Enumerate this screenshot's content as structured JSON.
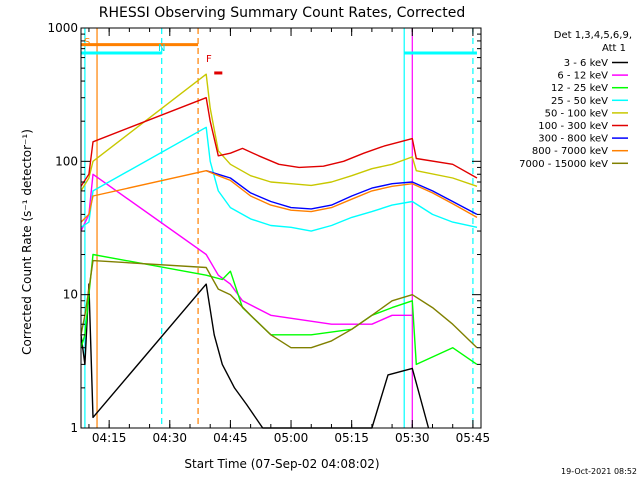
{
  "chart_data": {
    "type": "line",
    "title": "RHESSI Observing Summary Count Rates, Corrected",
    "xlabel": "Start Time (07-Sep-02 04:08:02)",
    "ylabel": "Corrected Count Rate (s⁻¹ detector⁻¹)",
    "ylog": true,
    "ylim": [
      1,
      1000
    ],
    "xlim": [
      "04:08:02",
      "05:47:00"
    ],
    "x_ticks": [
      "04:15",
      "04:30",
      "04:45",
      "05:00",
      "05:15",
      "05:30",
      "05:45"
    ],
    "y_ticks": [
      "1",
      "10",
      "100",
      "1000"
    ],
    "timestamp": "19-Oct-2021 08:52",
    "legend": {
      "placement": "right",
      "header": [
        "Det 1,3,4,5,6,9,",
        "Att 1"
      ]
    },
    "flags": {
      "S": {
        "label": "S",
        "color": "#ff8000"
      },
      "N": {
        "label": "N",
        "color": "#00e0e0"
      },
      "F": {
        "label": "F",
        "color": "#e00000"
      }
    },
    "series": [
      {
        "name": "3 - 6 keV",
        "color": "#000000",
        "points": [
          [
            "04:08:02",
            5
          ],
          [
            "04:09",
            3
          ],
          [
            "04:10",
            12
          ],
          [
            "04:11",
            1.2
          ],
          [
            "04:39",
            12
          ],
          [
            "04:41",
            5
          ],
          [
            "04:43",
            3
          ],
          [
            "04:46",
            2
          ],
          [
            "04:49",
            1.5
          ],
          [
            "04:53",
            1
          ],
          [
            "05:20",
            1
          ],
          [
            "05:24",
            2.5
          ],
          [
            "05:30",
            2.8
          ],
          [
            "05:34",
            1
          ]
        ]
      },
      {
        "name": "6 - 12 keV",
        "color": "#ff00ff",
        "points": [
          [
            "04:08:02",
            30
          ],
          [
            "04:10",
            40
          ],
          [
            "04:11",
            80
          ],
          [
            "04:39",
            20
          ],
          [
            "04:42",
            14
          ],
          [
            "04:45",
            12
          ],
          [
            "04:48",
            9
          ],
          [
            "04:55",
            7
          ],
          [
            "05:10",
            6
          ],
          [
            "05:20",
            6
          ],
          [
            "05:25",
            7
          ],
          [
            "05:30",
            7
          ]
        ]
      },
      {
        "name": "12 - 25 keV",
        "color": "#00ff00",
        "points": [
          [
            "04:08:02",
            4
          ],
          [
            "04:09",
            5
          ],
          [
            "04:10",
            10
          ],
          [
            "04:11",
            20
          ],
          [
            "04:39",
            14
          ],
          [
            "04:43",
            13
          ],
          [
            "04:45",
            15
          ],
          [
            "04:48",
            8
          ],
          [
            "04:55",
            5
          ],
          [
            "05:05",
            5
          ],
          [
            "05:15",
            5.5
          ],
          [
            "05:20",
            7
          ],
          [
            "05:25",
            8
          ],
          [
            "05:30",
            9
          ],
          [
            "05:31",
            3
          ],
          [
            "05:40",
            4
          ],
          [
            "05:46",
            3
          ]
        ]
      },
      {
        "name": "25 - 50 keV",
        "color": "#00ffff",
        "points": [
          [
            "04:08:02",
            32
          ],
          [
            "04:10",
            35
          ],
          [
            "04:11",
            60
          ],
          [
            "04:39",
            180
          ],
          [
            "04:40",
            100
          ],
          [
            "04:42",
            60
          ],
          [
            "04:45",
            45
          ],
          [
            "04:50",
            37
          ],
          [
            "04:55",
            33
          ],
          [
            "05:00",
            32
          ],
          [
            "05:05",
            30
          ],
          [
            "05:10",
            33
          ],
          [
            "05:15",
            38
          ],
          [
            "05:20",
            42
          ],
          [
            "05:25",
            47
          ],
          [
            "05:30",
            50
          ],
          [
            "05:35",
            40
          ],
          [
            "05:40",
            35
          ],
          [
            "05:46",
            32
          ]
        ]
      },
      {
        "name": "50 - 100 keV",
        "color": "#c8c800",
        "points": [
          [
            "04:08:02",
            60
          ],
          [
            "04:10",
            75
          ],
          [
            "04:11",
            100
          ],
          [
            "04:39",
            450
          ],
          [
            "04:40",
            250
          ],
          [
            "04:42",
            120
          ],
          [
            "04:45",
            95
          ],
          [
            "04:50",
            78
          ],
          [
            "04:55",
            70
          ],
          [
            "05:00",
            68
          ],
          [
            "05:05",
            66
          ],
          [
            "05:10",
            70
          ],
          [
            "05:15",
            78
          ],
          [
            "05:20",
            88
          ],
          [
            "05:25",
            95
          ],
          [
            "05:30",
            108
          ],
          [
            "05:31",
            85
          ],
          [
            "05:40",
            75
          ],
          [
            "05:46",
            65
          ]
        ]
      },
      {
        "name": "100 - 300 keV",
        "color": "#e00000",
        "points": [
          [
            "04:08:02",
            65
          ],
          [
            "04:10",
            80
          ],
          [
            "04:11",
            140
          ],
          [
            "04:39",
            300
          ],
          [
            "04:40",
            200
          ],
          [
            "04:42",
            110
          ],
          [
            "04:45",
            115
          ],
          [
            "04:48",
            125
          ],
          [
            "04:52",
            110
          ],
          [
            "04:57",
            95
          ],
          [
            "05:02",
            90
          ],
          [
            "05:08",
            92
          ],
          [
            "05:13",
            100
          ],
          [
            "05:18",
            115
          ],
          [
            "05:23",
            130
          ],
          [
            "05:27",
            140
          ],
          [
            "05:30",
            148
          ],
          [
            "05:31",
            105
          ],
          [
            "05:40",
            95
          ],
          [
            "05:46",
            75
          ]
        ]
      },
      {
        "name": "300 - 800 keV",
        "color": "#0000ff",
        "points": [
          [
            "04:39",
            85
          ],
          [
            "04:42",
            80
          ],
          [
            "04:45",
            75
          ],
          [
            "04:50",
            58
          ],
          [
            "04:55",
            50
          ],
          [
            "05:00",
            45
          ],
          [
            "05:05",
            44
          ],
          [
            "05:10",
            47
          ],
          [
            "05:15",
            55
          ],
          [
            "05:20",
            63
          ],
          [
            "05:25",
            68
          ],
          [
            "05:30",
            70
          ],
          [
            "05:35",
            60
          ],
          [
            "05:40",
            50
          ],
          [
            "05:46",
            40
          ]
        ]
      },
      {
        "name": "800 - 7000 keV",
        "color": "#ff8000",
        "points": [
          [
            "04:08:02",
            35
          ],
          [
            "04:10",
            40
          ],
          [
            "04:11",
            55
          ],
          [
            "04:39",
            85
          ],
          [
            "04:42",
            78
          ],
          [
            "04:45",
            72
          ],
          [
            "04:50",
            55
          ],
          [
            "04:55",
            47
          ],
          [
            "05:00",
            43
          ],
          [
            "05:05",
            42
          ],
          [
            "05:10",
            45
          ],
          [
            "05:15",
            52
          ],
          [
            "05:20",
            60
          ],
          [
            "05:25",
            65
          ],
          [
            "05:30",
            68
          ],
          [
            "05:35",
            58
          ],
          [
            "05:40",
            48
          ],
          [
            "05:46",
            38
          ]
        ]
      },
      {
        "name": "7000 - 15000 keV",
        "color": "#808000",
        "points": [
          [
            "04:08:02",
            5
          ],
          [
            "04:09",
            7
          ],
          [
            "04:10",
            11
          ],
          [
            "04:11",
            18
          ],
          [
            "04:39",
            16
          ],
          [
            "04:42",
            11
          ],
          [
            "04:45",
            10
          ],
          [
            "04:50",
            7
          ],
          [
            "04:55",
            5
          ],
          [
            "05:00",
            4
          ],
          [
            "05:05",
            4
          ],
          [
            "05:10",
            4.5
          ],
          [
            "05:15",
            5.5
          ],
          [
            "05:20",
            7
          ],
          [
            "05:25",
            9
          ],
          [
            "05:30",
            10
          ],
          [
            "05:35",
            8
          ],
          [
            "05:40",
            6
          ],
          [
            "05:46",
            4
          ]
        ]
      }
    ],
    "segments": [
      {
        "color": "#00ffff",
        "y": 650,
        "start": "04:08:02",
        "end": "04:28"
      },
      {
        "color": "#ff8000",
        "y": 750,
        "start": "04:08:02",
        "end": "04:37"
      },
      {
        "color": "#e00000",
        "y": 460,
        "start": "04:41",
        "end": "04:43"
      },
      {
        "color": "#00ffff",
        "y": 650,
        "start": "05:28",
        "end": "05:46"
      }
    ],
    "vlines": [
      {
        "t": "04:09",
        "color": "#00ffff",
        "style": "solid"
      },
      {
        "t": "04:12",
        "color": "#ff8000",
        "style": "solid"
      },
      {
        "t": "04:28",
        "color": "#00ffff",
        "style": "dashed"
      },
      {
        "t": "04:37",
        "color": "#ff8000",
        "style": "dashed"
      },
      {
        "t": "05:28",
        "color": "#00ffff",
        "style": "solid"
      },
      {
        "t": "05:30",
        "color": "#ff00ff",
        "style": "solid"
      },
      {
        "t": "05:45",
        "color": "#00ffff",
        "style": "dashed"
      }
    ]
  }
}
